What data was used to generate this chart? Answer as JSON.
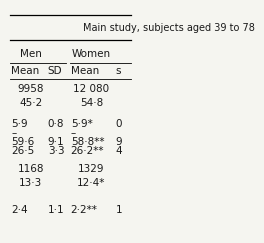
{
  "title": "Main study, subjects aged 39 to 78",
  "bg_color": "#f5f5f0",
  "text_color": "#1a1a1a",
  "font_size": 7.5
}
